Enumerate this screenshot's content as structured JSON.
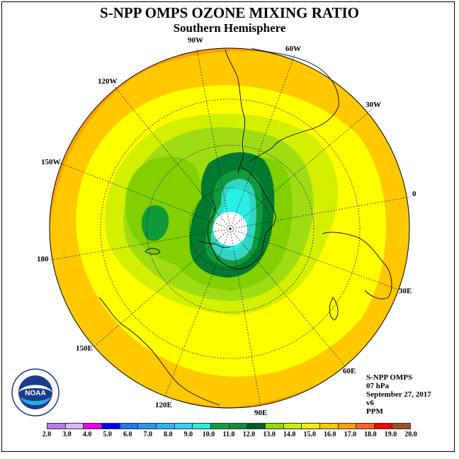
{
  "title": "S-NPP OMPS OZONE MIXING RATIO",
  "subtitle": "Southern Hemisphere",
  "longitude_labels": {
    "w90": "90W",
    "w60": "60W",
    "w30": "30W",
    "e0": "0",
    "e30": "30E",
    "e60": "60E",
    "e90": "90E",
    "e120": "120E",
    "e150": "150E",
    "e180": "180",
    "w150": "150W",
    "w120": "120W"
  },
  "info": {
    "product": "S-NPP OMPS",
    "level": "07 hPa",
    "date": "September 27, 2017",
    "version": "v6",
    "units": "PPM"
  },
  "logo": {
    "text": "NOAA",
    "ring_text": "NATIONAL OCEANIC AND ATMOSPHERIC ADMINISTRATION · U.S. DEPARTMENT OF COMMERCE",
    "icon": "noaa-logo-icon"
  },
  "colorbar": {
    "ticks": [
      "2.0",
      "3.0",
      "4.0",
      "5.0",
      "6.0",
      "7.0",
      "8.0",
      "9.0",
      "10.0",
      "11.0",
      "12.0",
      "13.0",
      "14.0",
      "15.0",
      "16.0",
      "17.0",
      "18.0",
      "19.0",
      "20.0"
    ],
    "colors": [
      "#b47cf0",
      "#e0b4f6",
      "#ee00ee",
      "#0000ee",
      "#1e78f0",
      "#2896f0",
      "#2ab4f4",
      "#34d0f6",
      "#28f0d8",
      "#10a040",
      "#0e8c38",
      "#005c22",
      "#90dc00",
      "#c8f000",
      "#f0f000",
      "#ffc800",
      "#ffa000",
      "#ff6428",
      "#ff0000",
      "#a05028"
    ]
  },
  "map_colors": {
    "band_17": "#ffa000",
    "band_16": "#ffc800",
    "band_15": "#ffff00",
    "band_14": "#d2f000",
    "band_13": "#a0dc14",
    "band_12": "#82d000",
    "band_11": "#007a30",
    "band_10": "#119a3c",
    "band_9": "#34d4c0",
    "band_8": "#28f0e6",
    "pole": "#ffffff"
  }
}
